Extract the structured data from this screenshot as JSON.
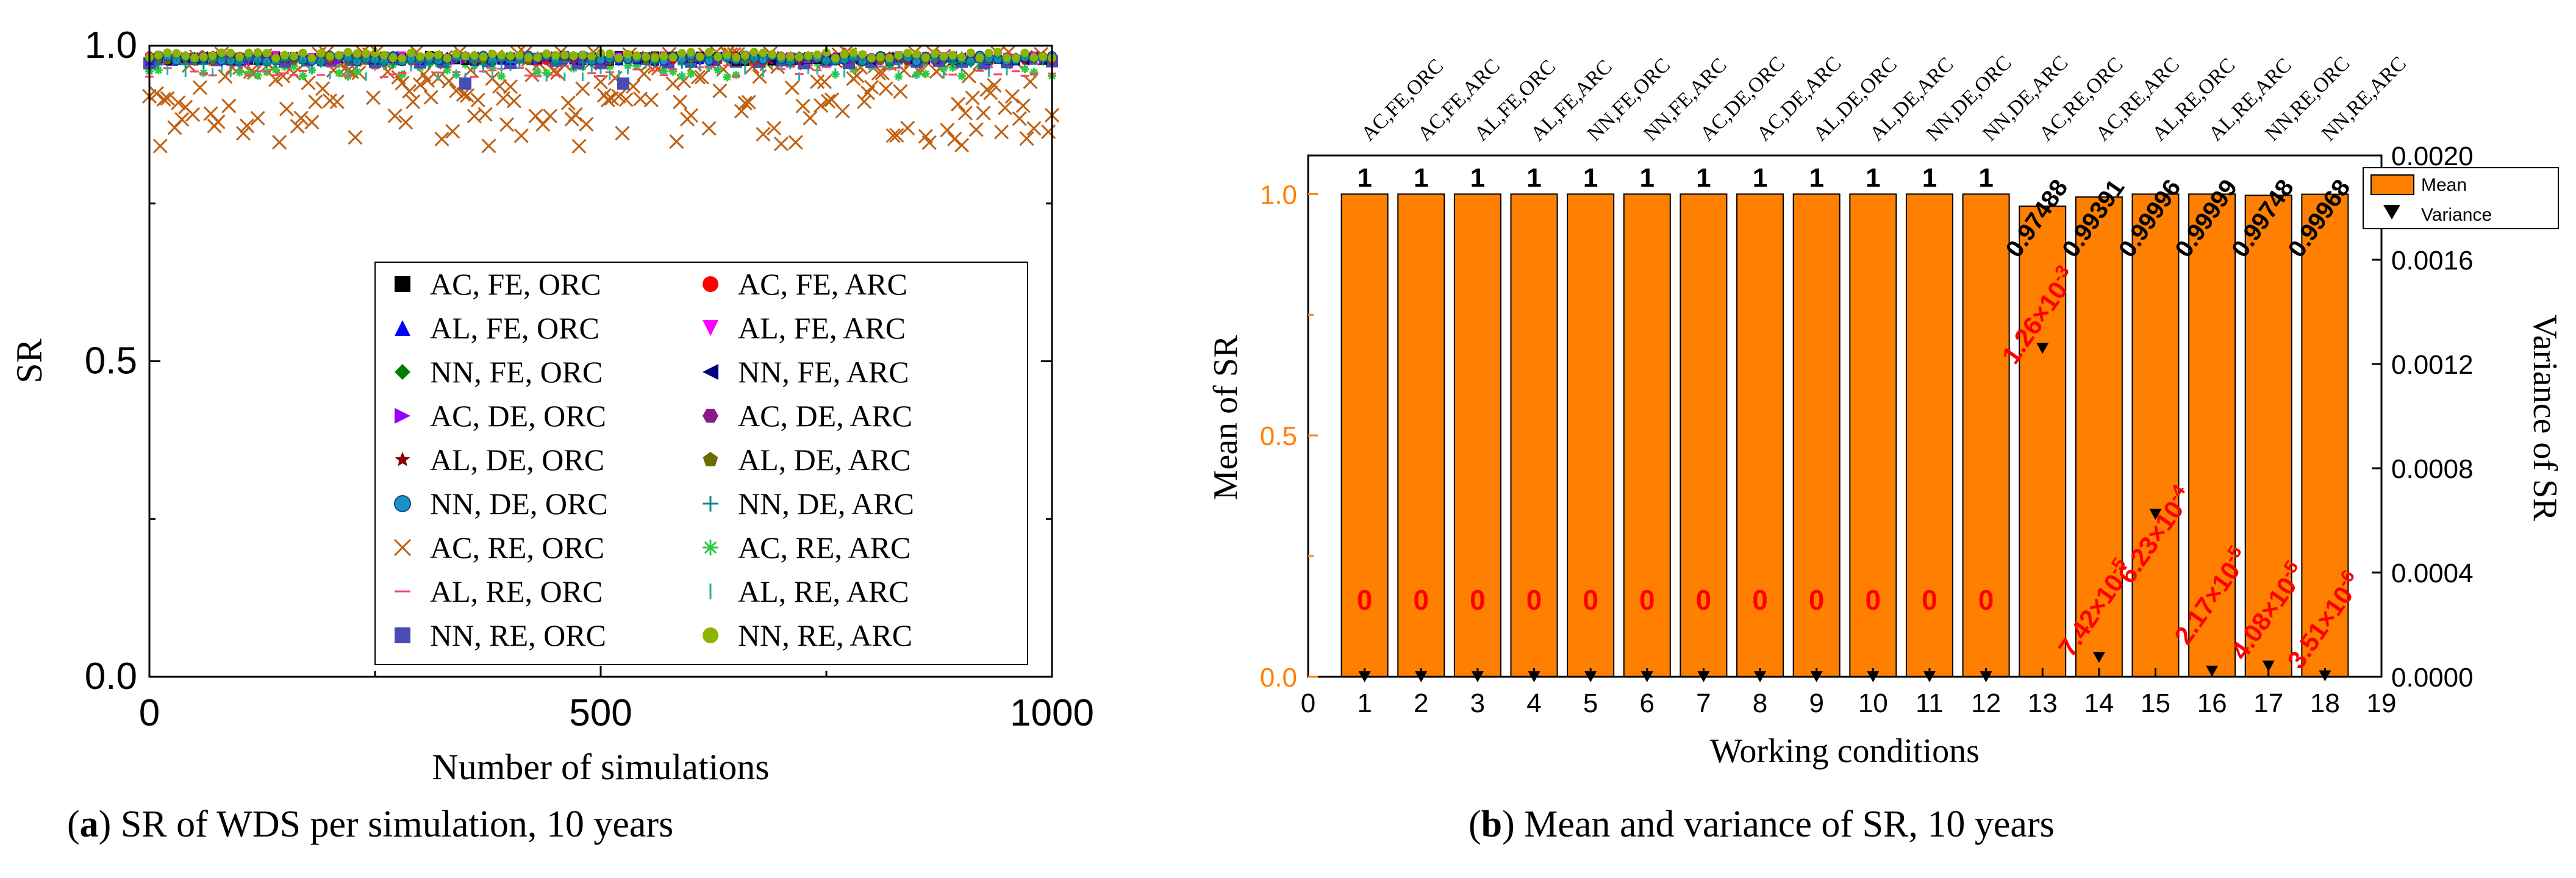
{
  "colors": {
    "bar": "#ff8000",
    "left_axis": "#ff8000",
    "labels_red": "#ff0000",
    "text": "#000000"
  },
  "captions": {
    "a_letter": "a",
    "a_text": " SR of WDS per simulation, 10 years",
    "b_letter": "b",
    "b_text": " Mean and variance of SR, 10 years"
  },
  "chart_data": [
    {
      "type": "scatter",
      "title": "",
      "xlabel": "Number of simulations",
      "ylabel": "SR",
      "xlim": [
        0,
        1000
      ],
      "ylim": [
        0,
        1.0
      ],
      "xticks": [
        "0",
        "500",
        "1000"
      ],
      "yticks": [
        "0.0",
        "0.5",
        "1.0"
      ],
      "legend_position": "bottom-right",
      "series": [
        {
          "name": "AC, FE, ORC",
          "marker": "square",
          "color": "#000000",
          "band": [
            0.975,
            0.985
          ]
        },
        {
          "name": "AC, FE, ARC",
          "marker": "circle",
          "color": "#ff0000",
          "band": [
            0.975,
            0.985
          ]
        },
        {
          "name": "AL, FE, ORC",
          "marker": "triangle-up",
          "color": "#0000ff",
          "band": [
            0.975,
            0.985
          ]
        },
        {
          "name": "AL, FE, ARC",
          "marker": "triangle-down",
          "color": "#ff00ff",
          "band": [
            0.975,
            0.985
          ]
        },
        {
          "name": "NN, FE, ORC",
          "marker": "diamond",
          "color": "#008000",
          "band": [
            0.975,
            0.985
          ]
        },
        {
          "name": "NN, FE, ARC",
          "marker": "triangle-left",
          "color": "#000080",
          "band": [
            0.975,
            0.985
          ]
        },
        {
          "name": "AC, DE, ORC",
          "marker": "triangle-right",
          "color": "#9900ff",
          "band": [
            0.975,
            0.985
          ]
        },
        {
          "name": "AC, DE, ARC",
          "marker": "hexagon",
          "color": "#8b1a8b",
          "band": [
            0.975,
            0.985
          ]
        },
        {
          "name": "AL, DE, ORC",
          "marker": "star",
          "color": "#8b0000",
          "band": [
            0.975,
            0.985
          ]
        },
        {
          "name": "AL, DE, ARC",
          "marker": "pentagon",
          "color": "#6b6b00",
          "band": [
            0.975,
            0.985
          ]
        },
        {
          "name": "NN, DE, ORC",
          "marker": "sphere",
          "color": "#1e90c8",
          "band": [
            0.975,
            0.985
          ]
        },
        {
          "name": "NN, DE, ARC",
          "marker": "plus",
          "color": "#008b8b",
          "band": [
            0.97,
            0.985
          ]
        },
        {
          "name": "AC, RE, ORC",
          "marker": "x",
          "color": "#c06010",
          "band": [
            0.84,
            0.99
          ]
        },
        {
          "name": "AC, RE, ARC",
          "marker": "asterisk",
          "color": "#2ecc40",
          "band": [
            0.95,
            0.985
          ]
        },
        {
          "name": "AL, RE, ORC",
          "marker": "hline",
          "color": "#ff4070",
          "band": [
            0.95,
            0.985
          ]
        },
        {
          "name": "AL, RE, ARC",
          "marker": "vline",
          "color": "#20b2aa",
          "band": [
            0.95,
            0.985
          ]
        },
        {
          "name": "NN, RE, ORC",
          "marker": "square",
          "color": "#4b4bb4",
          "band": [
            0.94,
            0.98
          ]
        },
        {
          "name": "NN, RE, ARC",
          "marker": "circle",
          "color": "#8cb400",
          "band": [
            0.98,
            0.99
          ]
        }
      ]
    },
    {
      "type": "bar",
      "title": "",
      "xlabel": "Working conditions",
      "ylabel": "Mean of SR",
      "ylabel_right": "Variance of SR",
      "xlim": [
        0,
        19
      ],
      "ylim": [
        0,
        1.08
      ],
      "ylim_right": [
        0,
        0.002
      ],
      "xticks": [
        "0",
        "1",
        "2",
        "3",
        "4",
        "5",
        "6",
        "7",
        "8",
        "9",
        "10",
        "11",
        "12",
        "13",
        "14",
        "15",
        "16",
        "17",
        "18",
        "19"
      ],
      "yticks": [
        "0.0",
        "0.5",
        "1.0"
      ],
      "yticks_right": [
        "0.0000",
        "0.0004",
        "0.0008",
        "0.0012",
        "0.0016",
        "0.0020"
      ],
      "legend_position": "top-right",
      "legend": [
        "Mean",
        "Variance"
      ],
      "categories": [
        "1",
        "2",
        "3",
        "4",
        "5",
        "6",
        "7",
        "8",
        "9",
        "10",
        "11",
        "12",
        "13",
        "14",
        "15",
        "16",
        "17",
        "18"
      ],
      "top_labels": [
        "AC,FE,ORC",
        "AC,FE,ARC",
        "AL,FE,ORC",
        "AL,FE,ARC",
        "NN,FE,ORC",
        "NN,FE,ARC",
        "AC,DE,ORC",
        "AC,DE,ARC",
        "AL,DE,ORC",
        "AL,DE,ARC",
        "NN,DE,ORC",
        "NN,DE,ARC",
        "AC,RE,ORC",
        "AC,RE,ARC",
        "AL,RE,ORC",
        "AL,RE,ARC",
        "NN,RE,ORC",
        "NN,RE,ARC"
      ],
      "series": [
        {
          "name": "Mean",
          "values": [
            1,
            1,
            1,
            1,
            1,
            1,
            1,
            1,
            1,
            1,
            1,
            1,
            0.97488,
            0.99391,
            0.99996,
            0.99999,
            0.99748,
            0.99968
          ]
        },
        {
          "name": "Variance",
          "values": [
            0,
            0,
            0,
            0,
            0,
            0,
            0,
            0,
            0,
            0,
            0,
            0,
            0.00126,
            7.42e-05,
            0.000623,
            2.17e-05,
            4.08e-05,
            3.51e-06
          ]
        }
      ],
      "mean_labels": [
        "1",
        "1",
        "1",
        "1",
        "1",
        "1",
        "1",
        "1",
        "1",
        "1",
        "1",
        "1",
        "0.97488",
        "0.99391",
        "0.99996",
        "0.99999",
        "0.99748",
        "0.99968"
      ],
      "variance_labels": [
        {
          "base": "0"
        },
        {
          "base": "0"
        },
        {
          "base": "0"
        },
        {
          "base": "0"
        },
        {
          "base": "0"
        },
        {
          "base": "0"
        },
        {
          "base": "0"
        },
        {
          "base": "0"
        },
        {
          "base": "0"
        },
        {
          "base": "0"
        },
        {
          "base": "0"
        },
        {
          "base": "0"
        },
        {
          "base": "1.26×10",
          "exp": "-3"
        },
        {
          "base": "7.42×10",
          "exp": "-5"
        },
        {
          "base": "6.23×10",
          "exp": "-4"
        },
        {
          "base": "2.17×10",
          "exp": "-5"
        },
        {
          "base": "4.08×10",
          "exp": "-5"
        },
        {
          "base": "3.51×10",
          "exp": "-6"
        }
      ]
    }
  ]
}
